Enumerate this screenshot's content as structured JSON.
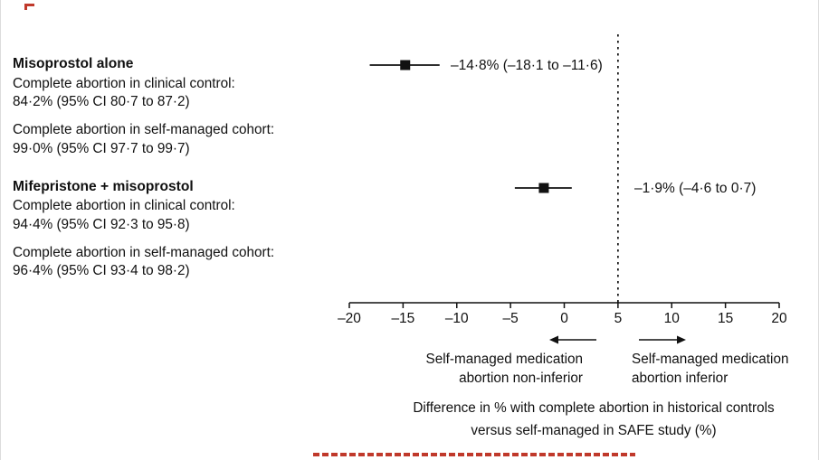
{
  "colors": {
    "ink": "#111111",
    "accent_red": "#c0392b",
    "background": "#ffffff"
  },
  "left_panel": {
    "groups": [
      {
        "title": "Misoprostol alone",
        "lines": [
          {
            "label": "Complete abortion in clinical control:",
            "value": "84·2% (95% CI 80·7 to 87·2)"
          },
          {
            "label": "Complete abortion in self-managed cohort:",
            "value": "99·0% (95% CI 97·7 to 99·7)"
          }
        ]
      },
      {
        "title": "Mifepristone + misoprostol",
        "lines": [
          {
            "label": "Complete abortion in clinical control:",
            "value": "94·4% (95% CI 92·3 to 95·8)"
          },
          {
            "label": "Complete abortion in self-managed cohort:",
            "value": "96·4% (95% CI 93·4 to 98·2)"
          }
        ]
      }
    ]
  },
  "chart_data": {
    "type": "forest",
    "title": "",
    "x_axis": {
      "min": -20,
      "max": 20,
      "ticks": [
        -20,
        -15,
        -10,
        -5,
        0,
        5,
        10,
        15,
        20
      ]
    },
    "noninferiority_margin": 5,
    "series": [
      {
        "name": "Misoprostol alone",
        "estimate": -14.8,
        "ci_low": -18.1,
        "ci_high": -11.6,
        "label": "–14·8% (–18·1 to –11·6)"
      },
      {
        "name": "Mifepristone + misoprostol",
        "estimate": -1.9,
        "ci_low": -4.6,
        "ci_high": 0.7,
        "label": "–1·9% (–4·6 to 0·7)"
      }
    ],
    "annotations": {
      "left_label_line1": "Self-managed medication",
      "left_label_line2": "abortion non-inferior",
      "right_label_line1": "Self-managed medication",
      "right_label_line2": "abortion inferior",
      "xlabel_line1": "Difference in % with complete abortion in historical controls",
      "xlabel_line2": "versus self-managed in SAFE study (%)"
    }
  }
}
